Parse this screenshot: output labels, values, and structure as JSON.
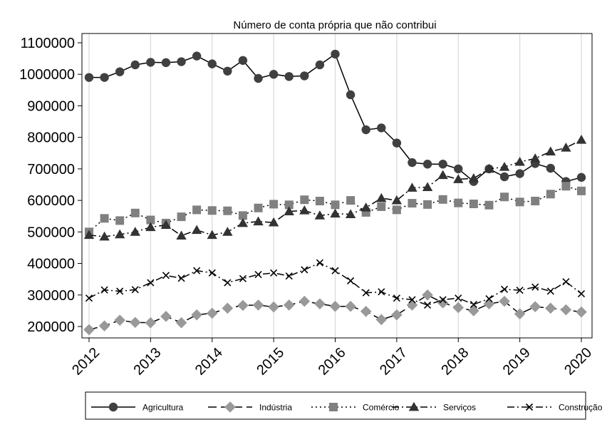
{
  "chart_data": {
    "type": "line",
    "title": "Número de conta própria que não contribui",
    "xlabel": "",
    "ylabel": "",
    "ylim": [
      200000,
      1100000
    ],
    "yticks": [
      "200000",
      "300000",
      "400000",
      "500000",
      "600000",
      "700000",
      "800000",
      "900000",
      "1000000",
      "1100000"
    ],
    "xticks": [
      "2012",
      "2013",
      "2014",
      "2015",
      "2016",
      "2017",
      "2018",
      "2019",
      "2020"
    ],
    "grid": "vertical lines at each year",
    "legend_position": "bottom",
    "x": [
      2012.0,
      2012.25,
      2012.5,
      2012.75,
      2013.0,
      2013.25,
      2013.5,
      2013.75,
      2014.0,
      2014.25,
      2014.5,
      2014.75,
      2015.0,
      2015.25,
      2015.5,
      2015.75,
      2016.0,
      2016.25,
      2016.5,
      2016.75,
      2017.0,
      2017.25,
      2017.5,
      2017.75,
      2018.0,
      2018.25,
      2018.5,
      2018.75,
      2019.0,
      2019.25,
      2019.5,
      2019.75,
      2020.0
    ],
    "series": [
      {
        "name": "Agricultura",
        "color": "#404040",
        "marker": "circle",
        "dash": "solid",
        "values": [
          990000,
          990000,
          1008000,
          1030000,
          1038000,
          1037000,
          1040000,
          1058000,
          1033000,
          1010000,
          1044000,
          987000,
          1000000,
          993000,
          995000,
          1030000,
          1064000,
          935000,
          824000,
          830000,
          782000,
          720000,
          715000,
          715000,
          700000,
          660000,
          700000,
          675000,
          685000,
          717000,
          702000,
          660000,
          673000
        ]
      },
      {
        "name": "Indústria",
        "color": "#999999",
        "marker": "diamond",
        "dash": "longdash",
        "values": [
          190000,
          202000,
          220000,
          213000,
          212000,
          232000,
          212000,
          237000,
          242000,
          258000,
          267000,
          268000,
          262000,
          268000,
          280000,
          272000,
          264000,
          264000,
          248000,
          222000,
          237000,
          268000,
          300000,
          275000,
          260000,
          250000,
          272000,
          280000,
          240000,
          263000,
          258000,
          253000,
          246000
        ]
      },
      {
        "name": "Comércio",
        "color": "#808080",
        "marker": "square",
        "dash": "dot",
        "values": [
          500000,
          543000,
          536000,
          560000,
          538000,
          528000,
          548000,
          570000,
          568000,
          567000,
          552000,
          576000,
          588000,
          586000,
          602000,
          598000,
          586000,
          600000,
          562000,
          580000,
          570000,
          591000,
          587000,
          603000,
          592000,
          589000,
          585000,
          611000,
          595000,
          598000,
          620000,
          645000,
          630000
        ]
      },
      {
        "name": "Serviços",
        "color": "#333333",
        "marker": "triangle",
        "dash": "dashdot",
        "values": [
          490000,
          485000,
          492000,
          500000,
          515000,
          522000,
          488000,
          506000,
          490000,
          500000,
          528000,
          533000,
          530000,
          565000,
          568000,
          552000,
          558000,
          556000,
          577000,
          607000,
          600000,
          640000,
          642000,
          680000,
          667000,
          670000,
          700000,
          706000,
          722000,
          733000,
          755000,
          767000,
          792000
        ]
      },
      {
        "name": "Construção",
        "color": "#000000",
        "marker": "x",
        "dash": "dashdot",
        "values": [
          290000,
          316000,
          312000,
          317000,
          339000,
          362000,
          353000,
          377000,
          370000,
          339000,
          352000,
          365000,
          370000,
          360000,
          380000,
          402000,
          377000,
          345000,
          307000,
          310000,
          290000,
          285000,
          268000,
          285000,
          290000,
          270000,
          288000,
          318000,
          315000,
          325000,
          312000,
          342000,
          304000
        ]
      }
    ]
  }
}
